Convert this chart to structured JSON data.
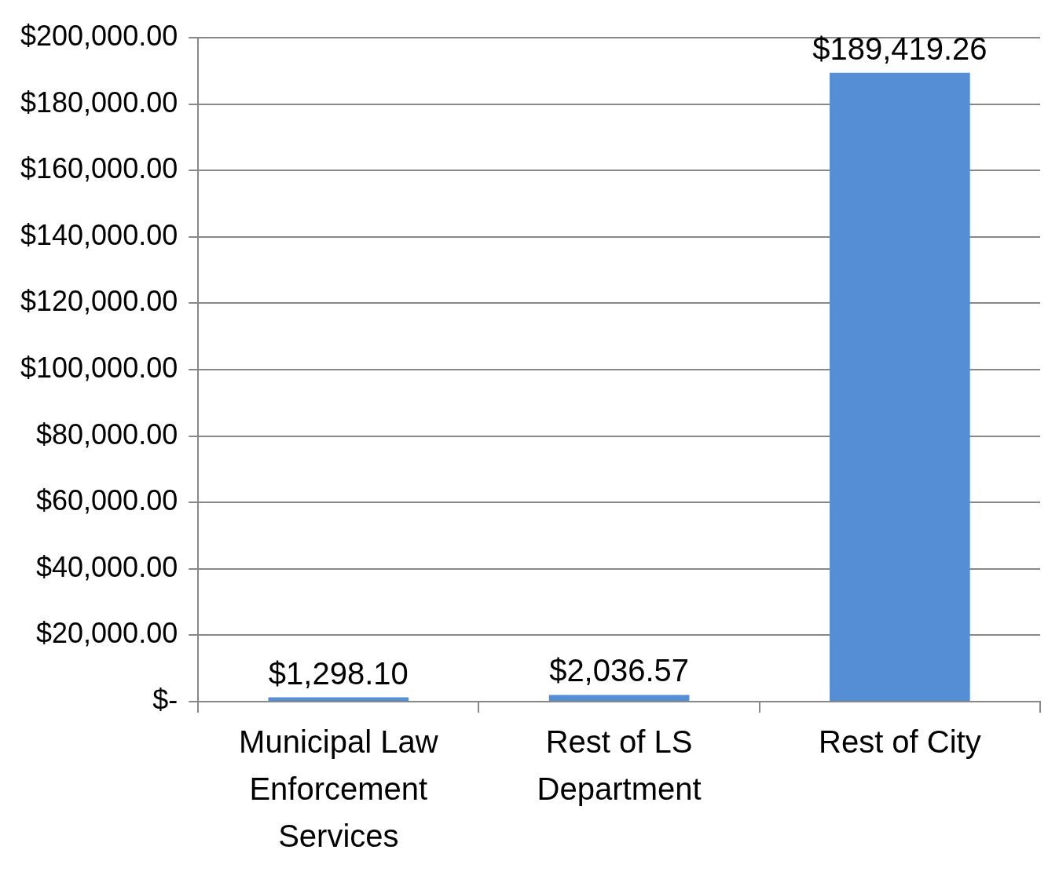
{
  "chart_data": {
    "type": "bar",
    "categories": [
      "Municipal Law Enforcement Services",
      "Rest of LS Department",
      "Rest of City"
    ],
    "values": [
      1298.1,
      2036.57,
      189419.26
    ],
    "color": "#558ed5",
    "value_labels": [
      "$1,298.10",
      "$2,036.57",
      "$189,419.26"
    ],
    "ylim": [
      0,
      200000
    ],
    "yticks": [
      {
        "value": 0,
        "label": "$-"
      },
      {
        "value": 20000,
        "label": "$20,000.00"
      },
      {
        "value": 40000,
        "label": "$40,000.00"
      },
      {
        "value": 60000,
        "label": "$60,000.00"
      },
      {
        "value": 80000,
        "label": "$80,000.00"
      },
      {
        "value": 100000,
        "label": "$100,000.00"
      },
      {
        "value": 120000,
        "label": "$120,000.00"
      },
      {
        "value": 140000,
        "label": "$140,000.00"
      },
      {
        "value": 160000,
        "label": "$160,000.00"
      },
      {
        "value": 180000,
        "label": "$180,000.00"
      },
      {
        "value": 200000,
        "label": "$200,000.00"
      }
    ],
    "grid": "y"
  }
}
